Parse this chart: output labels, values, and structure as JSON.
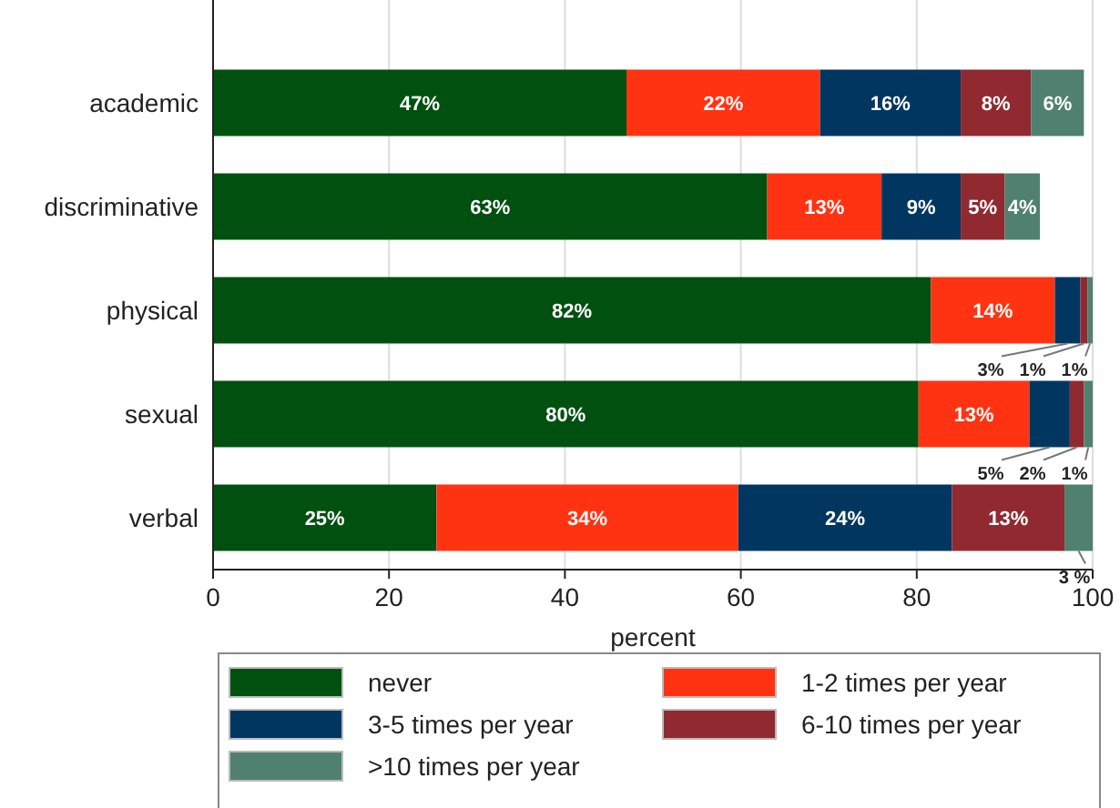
{
  "chart_data": {
    "type": "bar",
    "orientation": "horizontal",
    "stacked": true,
    "categories": [
      "academic",
      "discriminative",
      "physical",
      "sexual",
      "verbal"
    ],
    "xlabel": "percent",
    "xlim": [
      0,
      100
    ],
    "xticks": [
      0,
      20,
      40,
      60,
      80,
      100
    ],
    "grid": "x",
    "legend": "bottom",
    "series": [
      {
        "name": "never",
        "color": "#005010",
        "values": [
          47,
          63,
          81.6,
          80.2,
          25.4
        ],
        "value_labels": [
          "47%",
          "63%",
          "82%",
          "80%",
          "25%"
        ]
      },
      {
        "name": "1-2 times per year",
        "color": "#ff3311",
        "values": [
          22,
          13,
          14.1,
          12.6,
          34.3
        ],
        "value_labels": [
          "22%",
          "13%",
          "14%",
          "13%",
          "34%"
        ]
      },
      {
        "name": "3-5 times per year",
        "color": "#003660",
        "values": [
          16,
          9,
          2.9,
          4.6,
          24.3
        ],
        "value_labels": [
          "16%",
          "9%",
          "3%",
          "5%",
          "24%"
        ]
      },
      {
        "name": "6-10 times per year",
        "color": "#902a30",
        "values": [
          8,
          5,
          0.8,
          1.6,
          12.8
        ],
        "value_labels": [
          "8%",
          "5%",
          "1%",
          "2%",
          "13%"
        ]
      },
      {
        "name": ">10 times per year",
        "color": "#508070",
        "values": [
          6,
          4,
          0.6,
          1,
          3.2
        ],
        "value_labels": [
          "6%",
          "4%",
          "1%",
          "1%",
          "3 %"
        ]
      }
    ]
  }
}
